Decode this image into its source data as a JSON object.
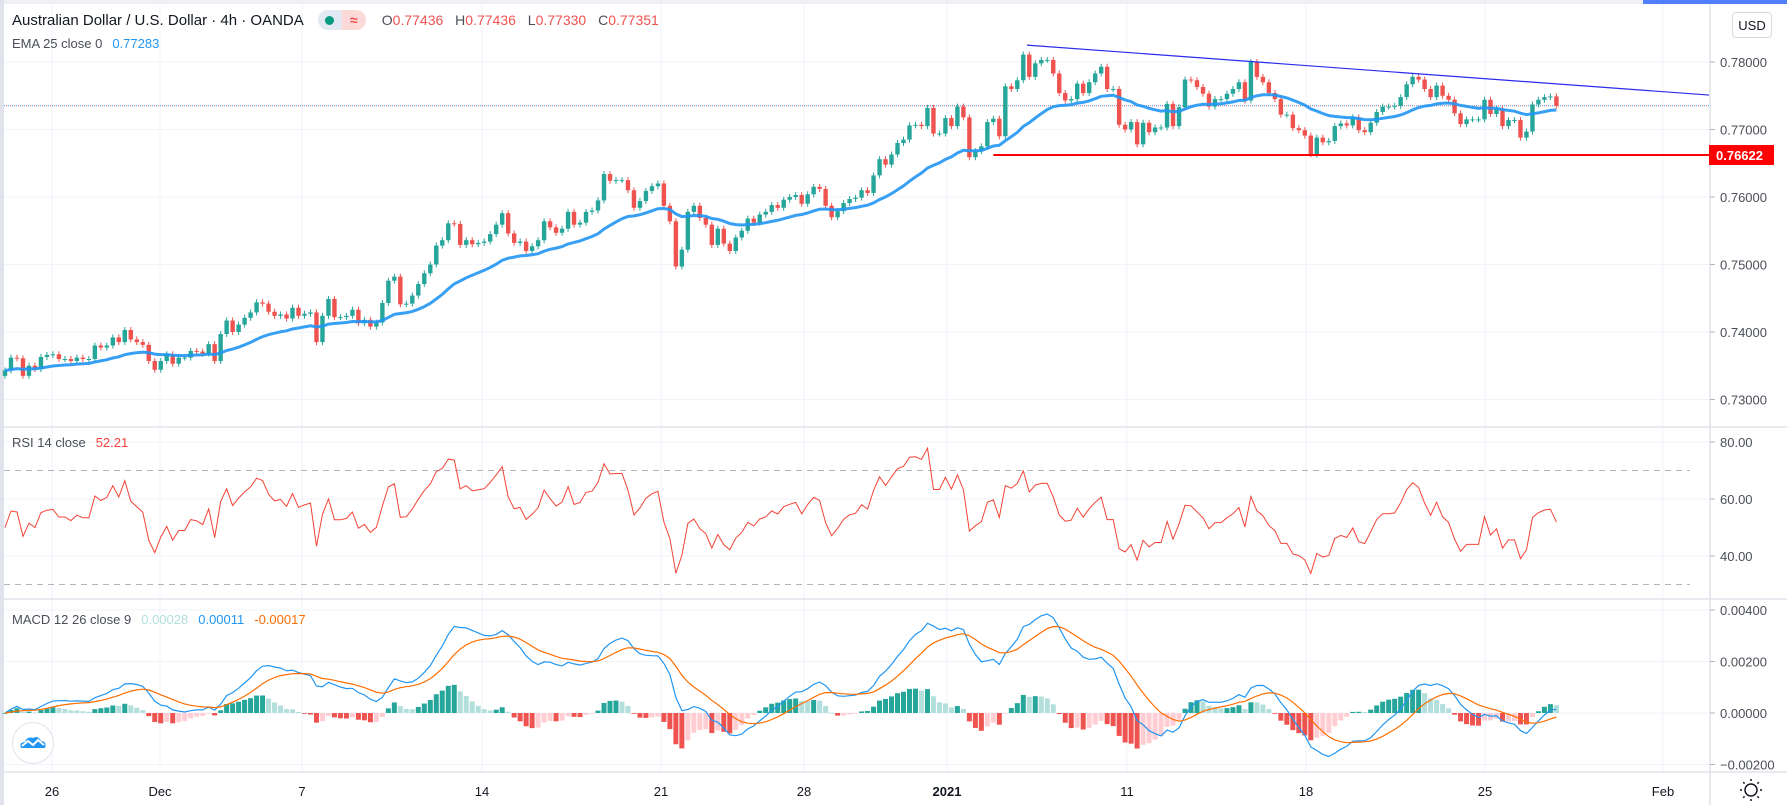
{
  "legend": {
    "title": "Australian Dollar / U.S. Dollar · 4h · OANDA",
    "status_icons": [
      "market-open-dot-icon",
      "delayed-data-icon"
    ],
    "delayed_glyph": "≈",
    "ohlc": [
      {
        "label": "O",
        "value": "0.77436"
      },
      {
        "label": "H",
        "value": "0.77436"
      },
      {
        "label": "L",
        "value": "0.77330"
      },
      {
        "label": "C",
        "value": "0.77351"
      }
    ],
    "ema_label": "EMA 25 close 0",
    "ema_value": "0.77283",
    "rsi_label": "RSI 14 close",
    "rsi_value": "52.21",
    "macd_label": "MACD 12 26 close 9",
    "macd_hist_value": "0.00028",
    "macd_value": "0.00011",
    "macd_signal_value": "-0.00017"
  },
  "currency_button": "USD",
  "colors": {
    "up": "#26a69a",
    "down": "#ef5350",
    "ema": "#2196f3",
    "rsi": "#f44336",
    "macd": "#2196f3",
    "signal": "#ff6d00",
    "hist_up_strong": "#26a69a",
    "hist_up_weak": "#b2dfdb",
    "hist_down_strong": "#ef5350",
    "hist_down_weak": "#ffcdd2",
    "trendline": "#2b2bf0",
    "support": "#ff0000"
  },
  "chart_data": [
    {
      "type": "candlestick",
      "symbol": "AUD/USD",
      "interval": "4h",
      "ylim": [
        0.7259,
        0.7871
      ],
      "yticks": [
        "0.78000",
        "0.77000",
        "0.76000",
        "0.75000",
        "0.74000",
        "0.73000"
      ],
      "xticks": [
        "26",
        "Dec",
        "7",
        "14",
        "21",
        "28",
        "2021",
        "11",
        "18",
        "25",
        "Feb"
      ],
      "grid": true,
      "closes": [
        0.7343,
        0.7362,
        0.7361,
        0.7335,
        0.735,
        0.7345,
        0.7363,
        0.7366,
        0.7367,
        0.736,
        0.736,
        0.7357,
        0.7362,
        0.736,
        0.736,
        0.738,
        0.7377,
        0.738,
        0.7392,
        0.7385,
        0.7403,
        0.7389,
        0.7385,
        0.7381,
        0.7357,
        0.7344,
        0.7357,
        0.7367,
        0.7353,
        0.7362,
        0.7362,
        0.7372,
        0.7371,
        0.7368,
        0.7382,
        0.7357,
        0.7397,
        0.7417,
        0.74,
        0.7411,
        0.7421,
        0.7429,
        0.7444,
        0.7442,
        0.743,
        0.7424,
        0.7426,
        0.742,
        0.7436,
        0.7424,
        0.7427,
        0.7429,
        0.7385,
        0.7424,
        0.7449,
        0.7422,
        0.7422,
        0.7424,
        0.7433,
        0.7413,
        0.7418,
        0.7408,
        0.7414,
        0.7443,
        0.7476,
        0.7482,
        0.7441,
        0.7442,
        0.7454,
        0.7471,
        0.7487,
        0.75,
        0.7528,
        0.7536,
        0.7561,
        0.756,
        0.7529,
        0.7536,
        0.753,
        0.7532,
        0.7534,
        0.7545,
        0.7559,
        0.7576,
        0.7546,
        0.7532,
        0.7534,
        0.752,
        0.7527,
        0.7536,
        0.7564,
        0.7555,
        0.7547,
        0.7553,
        0.7578,
        0.7559,
        0.7562,
        0.7578,
        0.758,
        0.7595,
        0.7634,
        0.7624,
        0.7625,
        0.7625,
        0.761,
        0.7584,
        0.7594,
        0.7609,
        0.7616,
        0.762,
        0.7587,
        0.7564,
        0.7497,
        0.7522,
        0.7578,
        0.7587,
        0.7569,
        0.7559,
        0.7529,
        0.7553,
        0.7531,
        0.752,
        0.754,
        0.755,
        0.7568,
        0.7562,
        0.7574,
        0.7578,
        0.7588,
        0.7584,
        0.7596,
        0.76,
        0.7603,
        0.759,
        0.7604,
        0.7615,
        0.7612,
        0.7587,
        0.757,
        0.7579,
        0.7591,
        0.7597,
        0.7599,
        0.761,
        0.7606,
        0.7632,
        0.7656,
        0.7648,
        0.7663,
        0.768,
        0.7685,
        0.7706,
        0.7707,
        0.7705,
        0.7732,
        0.7694,
        0.7694,
        0.7717,
        0.7705,
        0.7734,
        0.7718,
        0.7659,
        0.7668,
        0.7675,
        0.7711,
        0.7716,
        0.769,
        0.7764,
        0.776,
        0.7773,
        0.7811,
        0.7778,
        0.7798,
        0.7803,
        0.7803,
        0.7783,
        0.7754,
        0.7743,
        0.7745,
        0.7768,
        0.7754,
        0.777,
        0.7783,
        0.7793,
        0.776,
        0.776,
        0.7707,
        0.77,
        0.7711,
        0.7678,
        0.771,
        0.7696,
        0.7703,
        0.7703,
        0.7738,
        0.7705,
        0.7733,
        0.7774,
        0.7773,
        0.7763,
        0.7753,
        0.7734,
        0.7745,
        0.7745,
        0.7753,
        0.776,
        0.777,
        0.7743,
        0.78,
        0.7778,
        0.777,
        0.7754,
        0.7745,
        0.7722,
        0.7722,
        0.7702,
        0.7699,
        0.7691,
        0.7663,
        0.7688,
        0.7681,
        0.7683,
        0.7705,
        0.7709,
        0.7706,
        0.7718,
        0.7699,
        0.7696,
        0.771,
        0.7726,
        0.7734,
        0.7734,
        0.7735,
        0.7748,
        0.7767,
        0.7778,
        0.7774,
        0.776,
        0.7748,
        0.7765,
        0.775,
        0.7744,
        0.7724,
        0.7708,
        0.7715,
        0.7715,
        0.7715,
        0.7744,
        0.7723,
        0.773,
        0.7705,
        0.7714,
        0.7714,
        0.7688,
        0.7697,
        0.7737,
        0.7744,
        0.7748,
        0.7749,
        0.7735
      ],
      "overlays": {
        "ema_period": 25,
        "current_price": 0.77351,
        "support_line": {
          "price": 0.76622,
          "label": "0.76622",
          "from_bar": 165
        },
        "trendline": {
          "p1": {
            "bar": 170.6,
            "price": 0.7825
          },
          "p2": {
            "bar": 284.5,
            "price": 0.7751
          }
        }
      }
    },
    {
      "type": "line",
      "name": "RSI 14 close",
      "ylim": [
        20,
        85
      ],
      "yticks": [
        "80.00",
        "60.00",
        "40.00"
      ],
      "bands": [
        70,
        30
      ],
      "period": 14
    },
    {
      "type": "bar+line",
      "name": "MACD 12 26 close 9",
      "ylim": [
        -0.0023,
        0.0044
      ],
      "yticks": [
        "0.00400",
        "0.00200",
        "0.00000",
        "−0.00200"
      ],
      "fast": 12,
      "slow": 26,
      "signal": 9
    }
  ],
  "settings_icon": "sun-gear-icon"
}
